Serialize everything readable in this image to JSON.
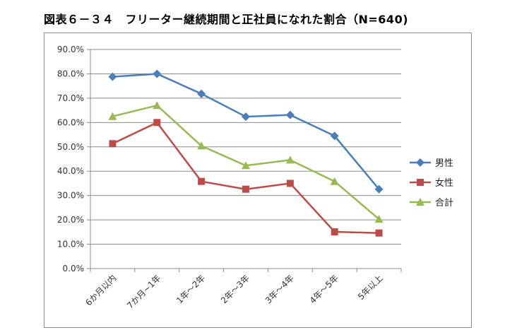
{
  "title": "図表６－３４　フリーター継続期間と正社員になれた割合（N=640)",
  "chart_data": {
    "type": "line",
    "title": "図表６－３４　フリーター継続期間と正社員になれた割合（N=640)",
    "categories": [
      "6か月以内",
      "7か月~1年",
      "1年～2年",
      "2年～3年",
      "3年～4年",
      "4年～5年",
      "5年以上"
    ],
    "ylim": [
      0,
      90
    ],
    "y_ticks": [
      "0.0%",
      "10.0%",
      "20.0%",
      "30.0%",
      "40.0%",
      "50.0%",
      "60.0%",
      "70.0%",
      "80.0%",
      "90.0%"
    ],
    "grid": true,
    "legend_position": "right",
    "series": [
      {
        "name": "男性",
        "color": "#4a7ebb",
        "marker": "diamond",
        "values": [
          78.8,
          80.0,
          71.8,
          62.4,
          63.1,
          54.5,
          32.6
        ]
      },
      {
        "name": "女性",
        "color": "#be4b48",
        "marker": "square",
        "values": [
          51.3,
          60.0,
          35.8,
          32.6,
          35.0,
          15.1,
          14.6
        ]
      },
      {
        "name": "合計",
        "color": "#98b954",
        "marker": "triangle",
        "values": [
          62.5,
          67.0,
          50.4,
          42.3,
          44.6,
          35.8,
          20.3
        ]
      }
    ]
  }
}
